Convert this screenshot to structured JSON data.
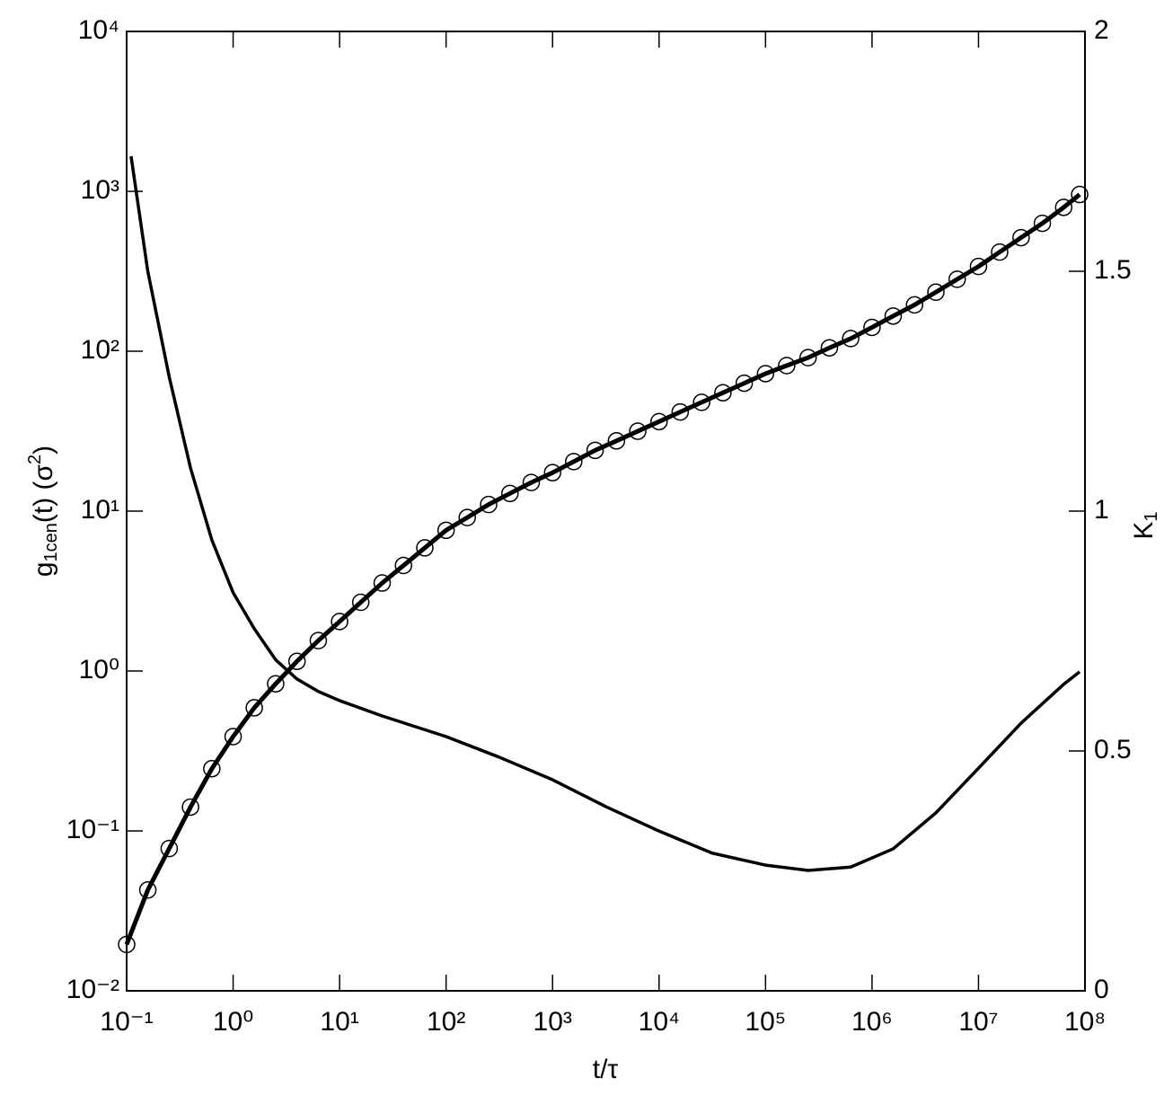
{
  "chart_data": {
    "type": "line",
    "xlabel": "t/τ",
    "ylabel": [
      "g",
      "1cen",
      "(t) (σ",
      "2",
      ")"
    ],
    "y2label": [
      "K",
      "1"
    ],
    "xscale": "log",
    "yscale": "log",
    "xlim": [
      0.1,
      100000000
    ],
    "ylim": [
      0.01,
      10000
    ],
    "y2lim": [
      0,
      2
    ],
    "xticks": [
      {
        "value": 0.1,
        "label": "10⁻¹"
      },
      {
        "value": 1,
        "label": "10⁰"
      },
      {
        "value": 10,
        "label": "10¹"
      },
      {
        "value": 100,
        "label": "10²"
      },
      {
        "value": 1000,
        "label": "10³"
      },
      {
        "value": 10000,
        "label": "10⁴"
      },
      {
        "value": 100000,
        "label": "10⁵"
      },
      {
        "value": 1000000,
        "label": "10⁶"
      },
      {
        "value": 10000000,
        "label": "10⁷"
      },
      {
        "value": 100000000,
        "label": "10⁸"
      }
    ],
    "yticks": [
      {
        "value": 0.01,
        "label": "10⁻²"
      },
      {
        "value": 0.1,
        "label": "10⁻¹"
      },
      {
        "value": 1,
        "label": "10⁰"
      },
      {
        "value": 10,
        "label": "10¹"
      },
      {
        "value": 100,
        "label": "10²"
      },
      {
        "value": 1000,
        "label": "10³"
      },
      {
        "value": 10000,
        "label": "10⁴"
      }
    ],
    "y2ticks": [
      0,
      0.5,
      1,
      1.5,
      2
    ],
    "grid": false,
    "series": [
      {
        "color": "#000000",
        "marker": "circle",
        "line_width": 5,
        "x": [
          0.1,
          0.158,
          0.251,
          0.398,
          0.631,
          1,
          1.58,
          2.51,
          3.98,
          6.31,
          10,
          15.8,
          25.1,
          39.8,
          63.1,
          100,
          158,
          251,
          398,
          631,
          1000,
          1580,
          2510,
          3980,
          6310,
          10000,
          15800,
          25100,
          39800,
          63100,
          100000,
          158000,
          251000,
          398000,
          631000,
          1000000,
          1580000,
          2510000,
          3980000,
          6310000,
          10000000,
          15800000,
          25100000,
          39800000,
          63100000,
          89100000
        ],
        "values": [
          0.0195,
          0.0427,
          0.0776,
          0.141,
          0.245,
          0.389,
          0.589,
          0.832,
          1.15,
          1.55,
          2.04,
          2.69,
          3.55,
          4.57,
          5.89,
          7.59,
          9.12,
          11.0,
          12.9,
          15.1,
          17.4,
          20.4,
          24.0,
          27.5,
          31.6,
          36.3,
          41.7,
          47.9,
          55.0,
          63.1,
          72.4,
          81.3,
          91.2,
          105,
          120,
          141,
          166,
          195,
          234,
          282,
          339,
          417,
          513,
          631,
          794,
          955
        ]
      },
      {
        "color": "#000000",
        "marker": "none",
        "line_width": 3.5,
        "axis": "y2",
        "x": [
          0.11,
          0.158,
          0.251,
          0.398,
          0.631,
          1,
          1.58,
          2.51,
          3.98,
          6.31,
          10,
          25.1,
          100,
          316,
          1000,
          3160,
          10000,
          31600,
          100000,
          251000,
          631000,
          1580000,
          3980000,
          10000000,
          25100000,
          63100000,
          89100000
        ],
        "values": [
          1.74,
          1.5,
          1.28,
          1.09,
          0.94,
          0.83,
          0.755,
          0.69,
          0.65,
          0.624,
          0.605,
          0.573,
          0.53,
          0.487,
          0.44,
          0.384,
          0.333,
          0.287,
          0.262,
          0.251,
          0.258,
          0.296,
          0.371,
          0.464,
          0.558,
          0.639,
          0.665
        ]
      }
    ]
  }
}
